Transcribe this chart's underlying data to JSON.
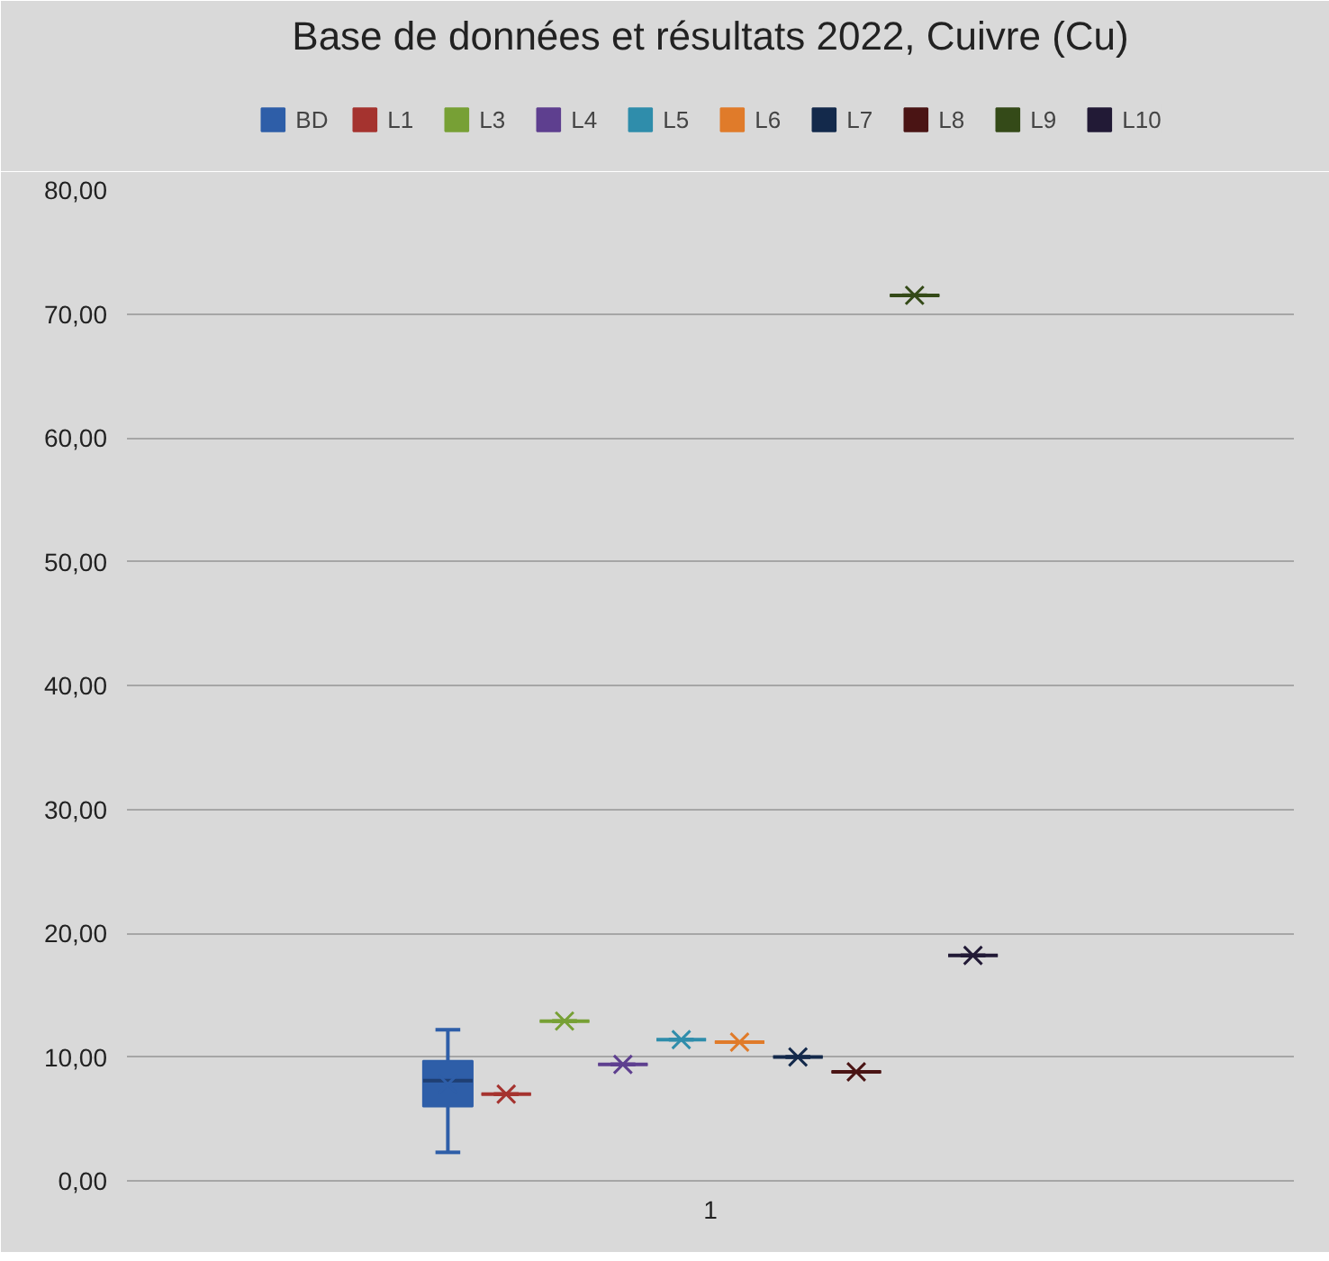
{
  "chart_data": {
    "type": "box",
    "title": "Base de données et résultats 2022, Cuivre (Cu)",
    "categories": [
      "1"
    ],
    "series": [
      {
        "name": "BD",
        "color": "#2e5ea8",
        "boxes": [
          {
            "low": 2.3,
            "q1": 6.0,
            "median": 8.1,
            "q3": 9.7,
            "high": 12.2,
            "mean": 7.8
          }
        ]
      },
      {
        "name": "L1",
        "color": "#a5332f",
        "boxes": [
          {
            "low": 7.0,
            "q1": 7.0,
            "median": 7.0,
            "q3": 7.0,
            "high": 7.0,
            "mean": 7.0
          }
        ]
      },
      {
        "name": "L3",
        "color": "#77a035",
        "boxes": [
          {
            "low": 12.9,
            "q1": 12.9,
            "median": 12.9,
            "q3": 12.9,
            "high": 12.9,
            "mean": 12.9
          }
        ]
      },
      {
        "name": "L4",
        "color": "#5e3f8f",
        "boxes": [
          {
            "low": 9.4,
            "q1": 9.4,
            "median": 9.4,
            "q3": 9.4,
            "high": 9.4,
            "mean": 9.4
          }
        ]
      },
      {
        "name": "L5",
        "color": "#2f8dab",
        "boxes": [
          {
            "low": 11.4,
            "q1": 11.4,
            "median": 11.4,
            "q3": 11.4,
            "high": 11.4,
            "mean": 11.4
          }
        ]
      },
      {
        "name": "L6",
        "color": "#e07b2a",
        "boxes": [
          {
            "low": 11.2,
            "q1": 11.2,
            "median": 11.2,
            "q3": 11.2,
            "high": 11.2,
            "mean": 11.2
          }
        ]
      },
      {
        "name": "L7",
        "color": "#13294b",
        "boxes": [
          {
            "low": 10.0,
            "q1": 10.0,
            "median": 10.0,
            "q3": 10.0,
            "high": 10.0,
            "mean": 10.0
          }
        ]
      },
      {
        "name": "L8",
        "color": "#4a1414",
        "boxes": [
          {
            "low": 8.8,
            "q1": 8.8,
            "median": 8.8,
            "q3": 8.8,
            "high": 8.8,
            "mean": 8.8
          }
        ]
      },
      {
        "name": "L9",
        "color": "#344a18",
        "boxes": [
          {
            "low": 71.5,
            "q1": 71.5,
            "median": 71.5,
            "q3": 71.5,
            "high": 71.5,
            "mean": 71.5
          }
        ]
      },
      {
        "name": "L10",
        "color": "#221a36",
        "boxes": [
          {
            "low": 18.2,
            "q1": 18.2,
            "median": 18.2,
            "q3": 18.2,
            "high": 18.2,
            "mean": 18.2
          }
        ]
      }
    ],
    "ylim": [
      0,
      80
    ],
    "yticks": [
      {
        "value": 0,
        "label": "0,00"
      },
      {
        "value": 10,
        "label": "10,00"
      },
      {
        "value": 20,
        "label": "20,00"
      },
      {
        "value": 30,
        "label": "30,00"
      },
      {
        "value": 40,
        "label": "40,00"
      },
      {
        "value": 50,
        "label": "50,00"
      },
      {
        "value": 60,
        "label": "60,00"
      },
      {
        "value": 70,
        "label": "70,00"
      },
      {
        "value": 80,
        "label": "80,00"
      }
    ],
    "grid": "y",
    "legend": "top",
    "marker": "cross"
  }
}
